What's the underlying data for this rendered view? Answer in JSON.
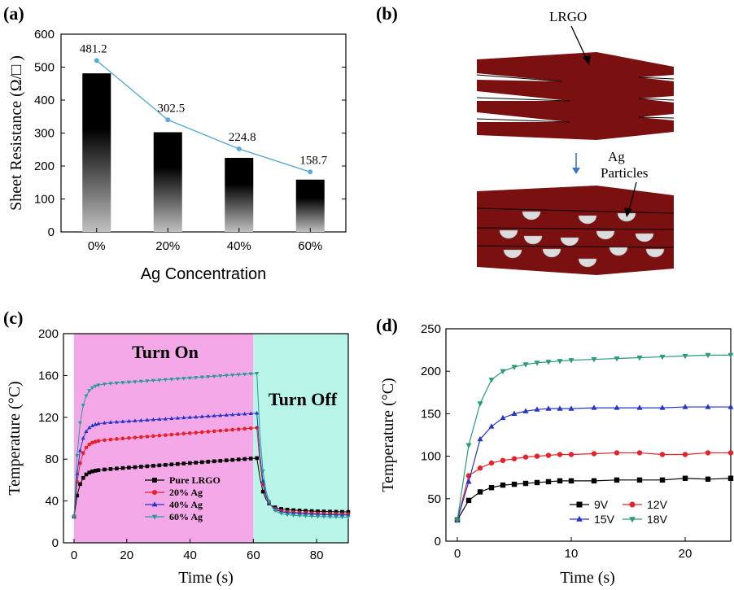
{
  "chart_data": [
    {
      "panel": "(a)",
      "type": "bar",
      "categories": [
        "0%",
        "20%",
        "40%",
        "60%"
      ],
      "values": [
        481.2,
        302.5,
        224.8,
        158.7
      ],
      "data_labels": [
        "481.2",
        "302.5",
        "224.8",
        "158.7"
      ],
      "line_values": [
        520,
        340,
        252,
        182
      ],
      "xlabel": "Ag Concentration",
      "ylabel": "Sheet Resistance (Ω/□ )",
      "ylim": [
        0,
        600
      ],
      "yticks": [
        0,
        100,
        200,
        300,
        400,
        500,
        600
      ],
      "bar_colors": [
        "#000000",
        "#c0c0c0"
      ],
      "line_color": "#5aa9d6"
    },
    {
      "panel": "(b)",
      "type": "diagram",
      "labels": {
        "top": "LRGO",
        "bottom_line1": "Ag",
        "bottom_line2": "Particles"
      },
      "sheet_color": "#7a1010",
      "arrow_color": "#3a78c2"
    },
    {
      "panel": "(c)",
      "type": "line",
      "xlabel": "Time (s)",
      "ylabel": "Temperature (°C)",
      "xlim": [
        0,
        90
      ],
      "ylim": [
        0,
        200
      ],
      "xticks": [
        0,
        20,
        40,
        60,
        80
      ],
      "yticks": [
        0,
        40,
        80,
        120,
        160,
        200
      ],
      "regions": [
        {
          "label": "Turn On",
          "x0": 0,
          "x1": 60,
          "color": "#f5a8e8"
        },
        {
          "label": "Turn Off",
          "x0": 60,
          "x1": 90,
          "color": "#b8f5e8"
        }
      ],
      "legend_position": "lower-center",
      "series": [
        {
          "name": "Pure LRGO",
          "color": "#000000",
          "marker": "square",
          "plateau": 81,
          "rise": 0.5,
          "base": 68,
          "end": 29
        },
        {
          "name": "20% Ag",
          "color": "#e8202a",
          "marker": "circle",
          "plateau": 110,
          "rise": 0.5,
          "base": 96,
          "end": 27
        },
        {
          "name": "40% Ag",
          "color": "#2535c8",
          "marker": "triangle",
          "plateau": 124,
          "rise": 0.5,
          "base": 113,
          "end": 26
        },
        {
          "name": "60% Ag",
          "color": "#2a9a96",
          "marker": "triangle-down",
          "plateau": 162,
          "rise": 0.5,
          "base": 150,
          "end": 24
        }
      ]
    },
    {
      "panel": "(d)",
      "type": "line",
      "xlabel": "Time (s)",
      "ylabel": "Temperature (°C)",
      "xlim": [
        -1,
        24
      ],
      "ylim": [
        0,
        250
      ],
      "xticks": [
        0,
        10,
        20
      ],
      "yticks": [
        0,
        50,
        100,
        150,
        200,
        250
      ],
      "legend_position": "lower-center",
      "series": [
        {
          "name": "9V",
          "color": "#000000",
          "marker": "square",
          "x": [
            0,
            1,
            2,
            3,
            4,
            5,
            6,
            7,
            8,
            9,
            10,
            12,
            14,
            16,
            18,
            20,
            22,
            24
          ],
          "y": [
            25,
            48,
            58,
            63,
            66,
            67,
            68,
            69,
            70,
            71,
            71,
            71,
            72,
            72,
            72,
            74,
            73,
            74
          ]
        },
        {
          "name": "12V",
          "color": "#e8202a",
          "marker": "circle",
          "x": [
            0,
            1,
            2,
            3,
            4,
            5,
            6,
            7,
            8,
            9,
            10,
            12,
            14,
            16,
            18,
            20,
            22,
            24
          ],
          "y": [
            25,
            77,
            86,
            92,
            95,
            97,
            99,
            100,
            101,
            102,
            102,
            103,
            104,
            104,
            102,
            102,
            104,
            104
          ]
        },
        {
          "name": "15V",
          "color": "#2535c8",
          "marker": "triangle",
          "x": [
            0,
            1,
            2,
            3,
            4,
            5,
            6,
            7,
            8,
            9,
            10,
            12,
            14,
            16,
            18,
            20,
            22,
            24
          ],
          "y": [
            25,
            70,
            120,
            135,
            145,
            150,
            153,
            155,
            156,
            156,
            156,
            157,
            157,
            157,
            157,
            158,
            158,
            158
          ]
        },
        {
          "name": "18V",
          "color": "#2a9a7a",
          "marker": "triangle-down",
          "x": [
            0,
            1,
            2,
            3,
            4,
            5,
            6,
            7,
            8,
            9,
            10,
            12,
            14,
            16,
            18,
            20,
            22,
            24
          ],
          "y": [
            25,
            113,
            162,
            190,
            200,
            205,
            208,
            210,
            211,
            212,
            213,
            214,
            215,
            216,
            217,
            218,
            219,
            219
          ]
        }
      ]
    }
  ]
}
